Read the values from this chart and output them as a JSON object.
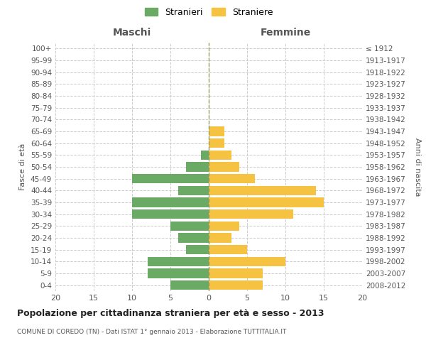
{
  "age_groups": [
    "0-4",
    "5-9",
    "10-14",
    "15-19",
    "20-24",
    "25-29",
    "30-34",
    "35-39",
    "40-44",
    "45-49",
    "50-54",
    "55-59",
    "60-64",
    "65-69",
    "70-74",
    "75-79",
    "80-84",
    "85-89",
    "90-94",
    "95-99",
    "100+"
  ],
  "birth_years": [
    "2008-2012",
    "2003-2007",
    "1998-2002",
    "1993-1997",
    "1988-1992",
    "1983-1987",
    "1978-1982",
    "1973-1977",
    "1968-1972",
    "1963-1967",
    "1958-1962",
    "1953-1957",
    "1948-1952",
    "1943-1947",
    "1938-1942",
    "1933-1937",
    "1928-1932",
    "1923-1927",
    "1918-1922",
    "1913-1917",
    "≤ 1912"
  ],
  "maschi": [
    5,
    8,
    8,
    3,
    4,
    5,
    10,
    10,
    4,
    10,
    3,
    1,
    0,
    0,
    0,
    0,
    0,
    0,
    0,
    0,
    0
  ],
  "femmine": [
    7,
    7,
    10,
    5,
    3,
    4,
    11,
    15,
    14,
    6,
    4,
    3,
    2,
    2,
    0,
    0,
    0,
    0,
    0,
    0,
    0
  ],
  "maschi_color": "#6aaa64",
  "femmine_color": "#f5c242",
  "background_color": "#ffffff",
  "grid_color": "#cccccc",
  "title": "Popolazione per cittadinanza straniera per età e sesso - 2013",
  "subtitle": "COMUNE DI COREDO (TN) - Dati ISTAT 1° gennaio 2013 - Elaborazione TUTTITALIA.IT",
  "xlabel_left": "Maschi",
  "xlabel_right": "Femmine",
  "ylabel_left": "Fasce di età",
  "ylabel_right": "Anni di nascita",
  "legend_maschi": "Stranieri",
  "legend_femmine": "Straniere",
  "xlim": 20,
  "bar_height": 0.8
}
